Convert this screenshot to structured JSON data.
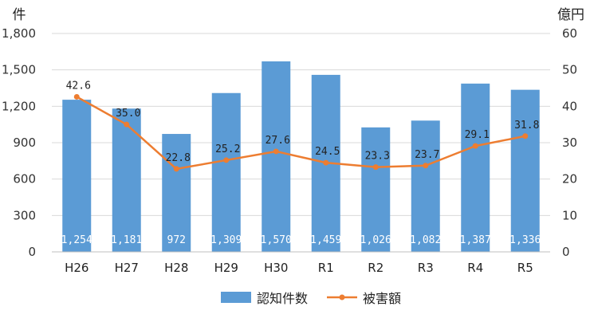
{
  "chart_data": {
    "type": "bar+line",
    "categories": [
      "H26",
      "H27",
      "H28",
      "H29",
      "H30",
      "R1",
      "R2",
      "R3",
      "R4",
      "R5"
    ],
    "series": [
      {
        "name": "認知件数",
        "type": "bar",
        "axis": "left",
        "values": [
          1254,
          1181,
          972,
          1309,
          1570,
          1459,
          1026,
          1082,
          1387,
          1336
        ],
        "labels": [
          "1,254",
          "1,181",
          "972",
          "1,309",
          "1,570",
          "1,459",
          "1,026",
          "1,082",
          "1,387",
          "1,336"
        ],
        "color": "#5b9bd5"
      },
      {
        "name": "被害額",
        "type": "line",
        "axis": "right",
        "values": [
          42.6,
          35.0,
          22.8,
          25.2,
          27.6,
          24.5,
          23.3,
          23.7,
          29.1,
          31.8
        ],
        "labels": [
          "42.6",
          "35.0",
          "22.8",
          "25.2",
          "27.6",
          "24.5",
          "23.3",
          "23.7",
          "29.1",
          "31.8"
        ],
        "color": "#ed7d31"
      }
    ],
    "y_left": {
      "unit": "件",
      "range": [
        0,
        1800
      ],
      "ticks": [
        0,
        300,
        600,
        900,
        1200,
        1500,
        1800
      ],
      "tick_labels": [
        "0",
        "300",
        "600",
        "900",
        "1,200",
        "1,500",
        "1,800"
      ]
    },
    "y_right": {
      "unit": "億円",
      "range": [
        0,
        60
      ],
      "ticks": [
        0,
        10,
        20,
        30,
        40,
        50,
        60
      ],
      "tick_labels": [
        "0",
        "10",
        "20",
        "30",
        "40",
        "50",
        "60"
      ]
    },
    "grid": true,
    "legend": {
      "position": "bottom",
      "items": [
        "認知件数",
        "被害額"
      ]
    }
  }
}
